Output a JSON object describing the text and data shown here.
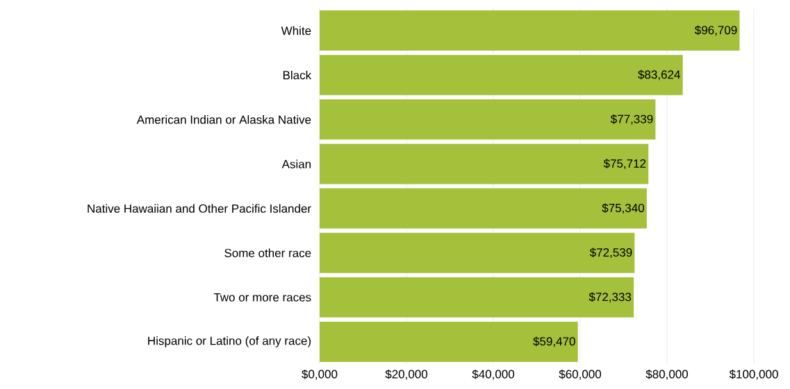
{
  "chart_data": {
    "type": "bar",
    "orientation": "horizontal",
    "categories": [
      "White",
      "Black",
      "American Indian or Alaska Native",
      "Asian",
      "Native Hawaiian and Other Pacific Islander",
      "Some other race",
      "Two or more races",
      "Hispanic or Latino (of any race)"
    ],
    "values": [
      96709,
      83624,
      77339,
      75712,
      75340,
      72539,
      72333,
      59470
    ],
    "value_labels": [
      "$96,709",
      "$83,624",
      "$77,339",
      "$75,712",
      "$75,340",
      "$72,539",
      "$72,333",
      "$59,470"
    ],
    "color": "#a5c13c",
    "xlim": [
      0,
      100000
    ],
    "xticks": [
      {
        "value": 0,
        "label": "$0,000"
      },
      {
        "value": 20000,
        "label": "$20,000"
      },
      {
        "value": 40000,
        "label": "$40,000"
      },
      {
        "value": 60000,
        "label": "$60,000"
      },
      {
        "value": 80000,
        "label": "$80,000"
      },
      {
        "value": 100000,
        "label": "$100,000"
      }
    ],
    "grid": "x"
  }
}
